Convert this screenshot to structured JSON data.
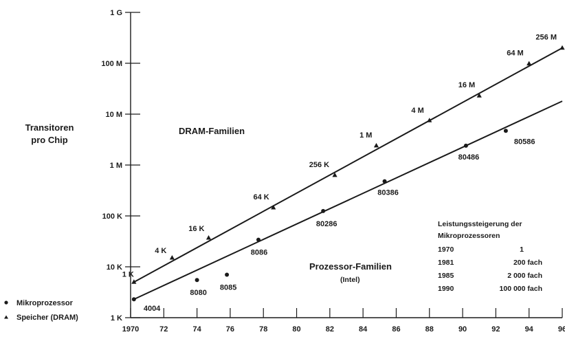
{
  "chart_data": {
    "type": "scatter",
    "y_scale": "log",
    "ylabel": [
      "Transitoren",
      "pro Chip"
    ],
    "xlim": [
      1970,
      1996
    ],
    "ylim": [
      1000,
      1000000000
    ],
    "x_ticks": [
      "1970",
      "72",
      "74",
      "76",
      "78",
      "80",
      "82",
      "84",
      "86",
      "88",
      "90",
      "92",
      "94",
      "96"
    ],
    "y_ticks": [
      {
        "value": 1000,
        "label": "1 K"
      },
      {
        "value": 10000,
        "label": "10 K"
      },
      {
        "value": 100000,
        "label": "100 K"
      },
      {
        "value": 1000000,
        "label": "1 M"
      },
      {
        "value": 10000000,
        "label": "10 M"
      },
      {
        "value": 100000000,
        "label": "100 M"
      },
      {
        "value": 1000000000,
        "label": "1 G"
      }
    ],
    "region_labels": {
      "dram": "DRAM-Familien",
      "processor": "Prozessor-Familien",
      "processor_sub": "(Intel)"
    },
    "series": [
      {
        "name": "Speicher (DRAM)",
        "marker": "triangle",
        "points": [
          {
            "x": 1970.2,
            "y": 5000,
            "label": "1 K"
          },
          {
            "x": 1972.5,
            "y": 15000,
            "label": "4 K"
          },
          {
            "x": 1974.7,
            "y": 37000,
            "label": "16 K"
          },
          {
            "x": 1978.6,
            "y": 145000,
            "label": "64 K"
          },
          {
            "x": 1982.3,
            "y": 630000,
            "label": "256 K"
          },
          {
            "x": 1984.8,
            "y": 2400000,
            "label": "1 M"
          },
          {
            "x": 1988.0,
            "y": 7500000,
            "label": "4 M"
          },
          {
            "x": 1991.0,
            "y": 23000000,
            "label": "16 M"
          },
          {
            "x": 1994.0,
            "y": 98000000,
            "label": "64 M"
          },
          {
            "x": 1996.0,
            "y": 200000000,
            "label": "256 M"
          }
        ],
        "trend": [
          [
            1970.2,
            5000
          ],
          [
            1996.0,
            200000000
          ]
        ]
      },
      {
        "name": "Mikroprozessor",
        "marker": "circle",
        "points": [
          {
            "x": 1970.2,
            "y": 2300,
            "label": "4004"
          },
          {
            "x": 1974.0,
            "y": 5500,
            "label": "8080"
          },
          {
            "x": 1975.8,
            "y": 7000,
            "label": "8085"
          },
          {
            "x": 1977.7,
            "y": 34000,
            "label": "8086"
          },
          {
            "x": 1981.6,
            "y": 125000,
            "label": "80286"
          },
          {
            "x": 1985.3,
            "y": 480000,
            "label": "80386"
          },
          {
            "x": 1990.2,
            "y": 2400000,
            "label": "80486"
          },
          {
            "x": 1992.6,
            "y": 4700000,
            "label": "80586"
          }
        ],
        "trend": [
          [
            1970.2,
            2300
          ],
          [
            1996.0,
            18000000
          ]
        ]
      }
    ],
    "performance_table": {
      "title": [
        "Leistungssteigerung der",
        "Mikroprozessoren"
      ],
      "rows": [
        {
          "year": "1970",
          "value": "1"
        },
        {
          "year": "1981",
          "value": "200 fach"
        },
        {
          "year": "1985",
          "value": "2 000 fach"
        },
        {
          "year": "1990",
          "value": "100 000 fach"
        }
      ]
    },
    "legend": [
      {
        "marker": "circle",
        "label": "Mikroprozessor"
      },
      {
        "marker": "triangle",
        "label": "Speicher (DRAM)"
      }
    ]
  }
}
